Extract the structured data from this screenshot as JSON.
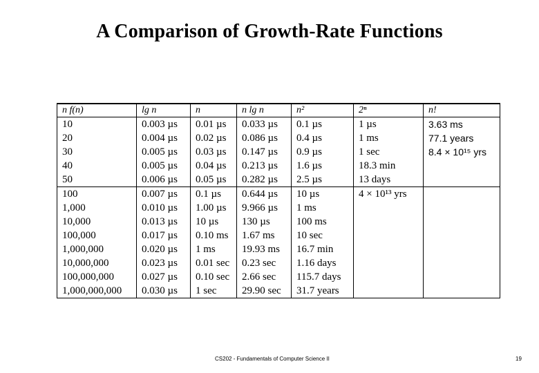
{
  "slide": {
    "title": "A Comparison of Growth-Rate Functions",
    "footer": "CS202 - Fundamentals of Computer Science II",
    "page_number": "19"
  },
  "table": {
    "headers": [
      "n  f(n)",
      "lg n",
      "n",
      "n lg n",
      "n²",
      "2ⁿ",
      "n!"
    ],
    "rows": [
      [
        "10",
        "0.003 µs",
        "0.01 µs",
        "0.033 µs",
        "0.1 µs",
        "1 µs",
        "3.63 ms"
      ],
      [
        "20",
        "0.004 µs",
        "0.02 µs",
        "0.086 µs",
        "0.4 µs",
        "1 ms",
        "77.1 years"
      ],
      [
        "30",
        "0.005 µs",
        "0.03 µs",
        "0.147 µs",
        "0.9 µs",
        "1 sec",
        "8.4 × 10¹⁵ yrs"
      ],
      [
        "40",
        "0.005 µs",
        "0.04 µs",
        "0.213 µs",
        "1.6 µs",
        "18.3 min",
        ""
      ],
      [
        "50",
        "0.006 µs",
        "0.05 µs",
        "0.282 µs",
        "2.5 µs",
        "13 days",
        ""
      ],
      [
        "100",
        "0.007 µs",
        "0.1 µs",
        "0.644 µs",
        "10 µs",
        "4 × 10¹³ yrs",
        ""
      ],
      [
        "1,000",
        "0.010 µs",
        "1.00 µs",
        "9.966 µs",
        "1 ms",
        "",
        ""
      ],
      [
        "10,000",
        "0.013 µs",
        "10 µs",
        "130 µs",
        "100 ms",
        "",
        ""
      ],
      [
        "100,000",
        "0.017 µs",
        "0.10 ms",
        "1.67 ms",
        "10 sec",
        "",
        ""
      ],
      [
        "1,000,000",
        "0.020 µs",
        "1 ms",
        "19.93 ms",
        "16.7 min",
        "",
        ""
      ],
      [
        "10,000,000",
        "0.023 µs",
        "0.01 sec",
        "0.23 sec",
        "1.16 days",
        "",
        ""
      ],
      [
        "100,000,000",
        "0.027 µs",
        "0.10 sec",
        "2.66 sec",
        "115.7 days",
        "",
        ""
      ],
      [
        "1,000,000,000",
        "0.030 µs",
        "1 sec",
        "29.90 sec",
        "31.7 years",
        "",
        ""
      ]
    ]
  }
}
